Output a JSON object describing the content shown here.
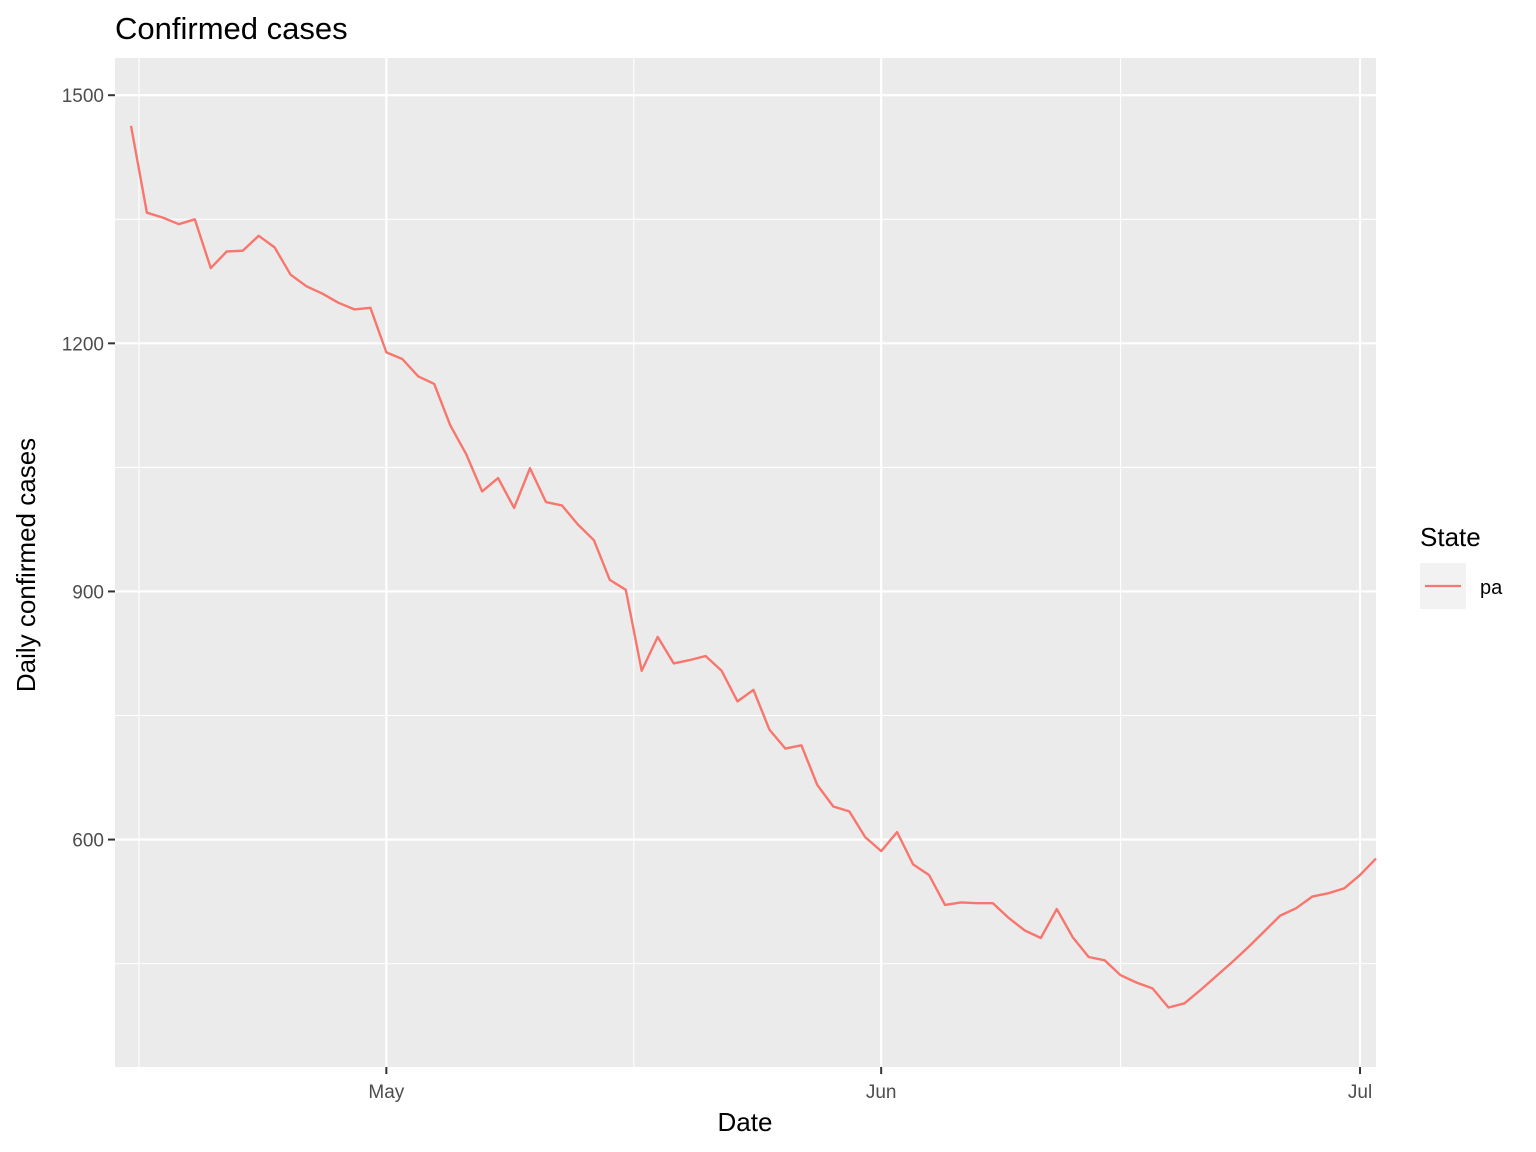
{
  "chart_data": {
    "type": "line",
    "title": "Confirmed cases",
    "xlabel": "Date",
    "ylabel": "Daily confirmed cases",
    "x_start": "2020-04-15",
    "xlim": [
      "2020-04-14",
      "2020-07-02"
    ],
    "ylim": [
      325,
      1545
    ],
    "x_ticks": [
      {
        "label": "May",
        "date": "2020-05-01"
      },
      {
        "label": "Jun",
        "date": "2020-06-01"
      },
      {
        "label": "Jul",
        "date": "2020-07-01"
      }
    ],
    "y_ticks": [
      600,
      900,
      1200,
      1500
    ],
    "grid": true,
    "legend": {
      "title": "State",
      "position": "right"
    },
    "series": [
      {
        "name": "pa",
        "color": "#F8766D",
        "values": [
          1463,
          1358,
          1352,
          1344,
          1350,
          1291,
          1311,
          1312,
          1330,
          1316,
          1283,
          1269,
          1260,
          1249,
          1241,
          1243,
          1189,
          1181,
          1160,
          1151,
          1101,
          1066,
          1021,
          1037,
          1001,
          1049,
          1008,
          1004,
          981,
          962,
          914,
          902,
          804,
          845,
          813,
          817,
          822,
          804,
          767,
          781,
          733,
          710,
          714,
          666,
          640,
          634,
          603,
          586,
          609,
          570,
          557,
          521,
          524,
          523,
          523,
          505,
          490,
          481,
          516,
          482,
          458,
          454,
          436,
          427,
          420,
          397,
          402,
          418,
          435,
          452,
          470,
          489,
          508,
          517,
          531,
          535,
          541,
          557,
          577
        ]
      }
    ]
  }
}
